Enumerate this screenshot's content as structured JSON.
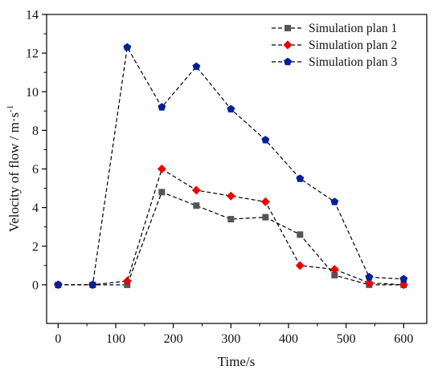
{
  "chart_data": {
    "type": "line",
    "xlabel": "Time/s",
    "ylabel": "Velocity of  flow / m·s",
    "ylabel_superscript": "-1",
    "xlim": [
      -20,
      640
    ],
    "ylim": [
      -2,
      14
    ],
    "xticks": [
      0,
      100,
      200,
      300,
      400,
      500,
      600
    ],
    "yticks": [
      0,
      2,
      4,
      6,
      8,
      10,
      12,
      14
    ],
    "grid": false,
    "legend_position": "top-right",
    "x": [
      0,
      60,
      120,
      180,
      240,
      300,
      360,
      420,
      480,
      540,
      600
    ],
    "series": [
      {
        "name": "Simulation plan 1",
        "color": "#555555",
        "marker": "square",
        "values": [
          0,
          0,
          0,
          4.8,
          4.1,
          3.4,
          3.5,
          2.6,
          0.5,
          0,
          0
        ]
      },
      {
        "name": "Simulation plan 2",
        "color": "#ee0000",
        "marker": "diamond",
        "values": [
          0,
          0,
          0.2,
          6.0,
          4.9,
          4.6,
          4.3,
          1.0,
          0.8,
          0.1,
          0
        ]
      },
      {
        "name": "Simulation plan 3",
        "color": "#001f9a",
        "marker": "pentagon",
        "values": [
          0,
          0,
          12.3,
          9.2,
          11.3,
          9.1,
          7.5,
          5.5,
          4.3,
          0.4,
          0.3
        ]
      }
    ]
  }
}
